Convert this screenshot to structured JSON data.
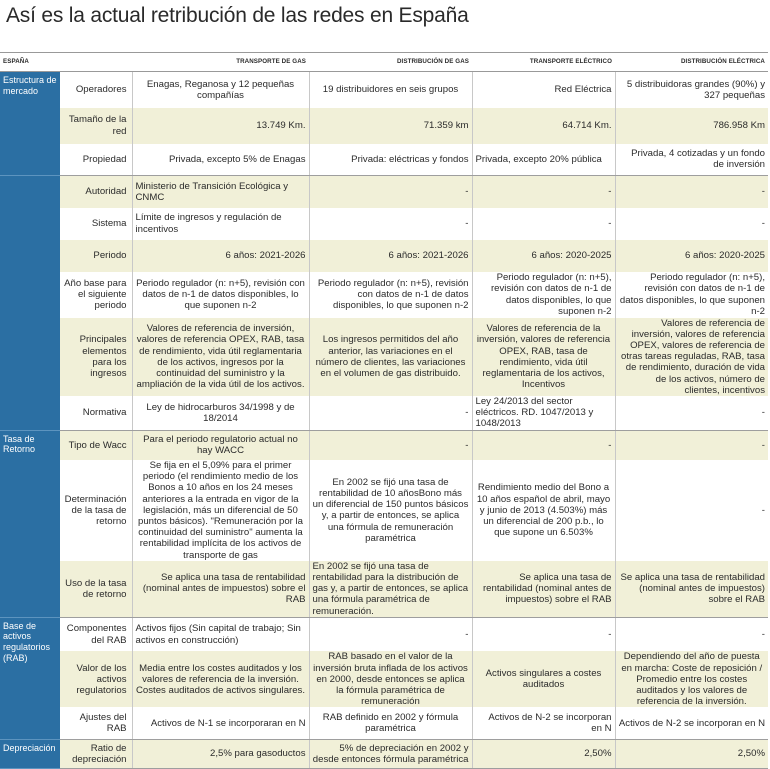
{
  "title": "Así es la actual retribución de las redes en España",
  "headers": [
    "España",
    "",
    "Transporte de gas",
    "Distribución de gas",
    "Transporte eléctrico",
    "Distribución eléctrica"
  ],
  "groups": [
    {
      "name": "Estructura de mercado",
      "rows": [
        {
          "label": "Operadores",
          "values": [
            "Enagas, Reganosa y 12 pequeñas compañías",
            "19 distribuidores en seis grupos",
            "Red Eléctrica",
            "5 distribuidoras grandes (90%) y 327 pequeñas"
          ]
        },
        {
          "label": "Tamaño de la red",
          "values": [
            "13.749 Km.",
            "71.359 km",
            "64.714 Km.",
            "786.958 Km"
          ]
        },
        {
          "label": "Propiedad",
          "values": [
            "Privada, excepto 5% de Enagas",
            "Privada: eléctricas y fondos",
            "Privada, excepto 20% pública",
            "Privada, 4 cotizadas y un fondo de inversión"
          ]
        }
      ]
    },
    {
      "name": "",
      "rows": [
        {
          "label": "Autoridad",
          "values": [
            "Ministerio de Transición Ecológica y CNMC",
            "-",
            "-",
            "-"
          ]
        },
        {
          "label": "Sistema",
          "values": [
            "Límite de ingresos y regulación de incentivos",
            "-",
            "-",
            "-"
          ]
        },
        {
          "label": "Periodo",
          "values": [
            "6 años: 2021-2026",
            "6 años: 2021-2026",
            "6 años: 2020-2025",
            "6 años: 2020-2025"
          ]
        },
        {
          "label": "Año base para el siguiente periodo",
          "values": [
            "Periodo regulador (n: n+5), revisión con datos de n-1 de datos disponibles, lo que suponen n-2",
            "Periodo regulador (n: n+5), revisión con datos de n-1 de datos disponibles, lo que suponen n-2",
            "Periodo regulador (n: n+5), revisión con datos de n-1 de datos disponibles, lo que suponen n-2",
            "Periodo regulador (n: n+5), revisión con datos de n-1 de datos disponibles, lo que suponen n-2"
          ]
        },
        {
          "label": "Principales elementos para los ingresos",
          "values": [
            "Valores de referencia de inversión, valores de referencia OPEX, RAB, tasa de rendimiento, vida útil reglamentaria de los activos, ingresos por la continuidad del suministro y la ampliación de la vida útil de los activos.",
            "Los ingresos permitidos del año anterior, las variaciones en el número de clientes, las variaciones en el volumen de gas distribuido.",
            "Valores de referencia de la inversión, valores de referencia OPEX, RAB, tasa de rendimiento, vida útil reglamentaria de los activos, Incentivos",
            "Valores de referencia de inversión, valores de referencia OPEX, valores de referencia de otras tareas reguladas, RAB, tasa de rendimiento, duración de vida de los activos, número de clientes, incentivos"
          ]
        },
        {
          "label": "Normativa",
          "values": [
            "Ley de hidrocarburos 34/1998 y de 18/2014",
            "-",
            "Ley 24/2013 del sector eléctricos. RD. 1047/2013 y 1048/2013",
            "-"
          ]
        }
      ]
    },
    {
      "name": "Tasa de Retorno",
      "rows": [
        {
          "label": "Tipo de Wacc",
          "values": [
            "Para el periodo regulatorio actual no hay WACC",
            "-",
            "-",
            "-"
          ]
        },
        {
          "label": "Determinación de la tasa de retorno",
          "values": [
            "Se fija en el 5,09% para el primer periodo (el rendimiento medio de los Bonos a 10 años en los 24 meses anteriores a la entrada en vigor de la legislación, más un diferencial de 50 puntos básicos). \"Remuneración por la continuidad del suministro\" aumenta la rentabilidad implícita de los activos de transporte de gas",
            "En 2002 se fijó una tasa de rentabilidad de 10 añosBono más un diferencial de 150 puntos básicos y, a partir de entonces, se aplica una fórmula de remuneración paramétrica",
            "Rendimiento medio del Bono a 10 años español de abril, mayo y junio de 2013 (4.503%) más un diferencial de 200 p.b., lo que supone un 6.503%",
            "-"
          ]
        },
        {
          "label": "Uso de la tasa de retorno",
          "values": [
            "Se aplica una tasa de rentabilidad (nominal antes de impuestos) sobre el RAB",
            "En 2002 se fijó una tasa de rentabilidad para la distribución de gas y, a partir de entonces, se aplica una fórmula paramétrica de remuneración.",
            "Se aplica una tasa de rentabilidad (nominal antes de impuestos) sobre el RAB",
            "Se aplica una tasa de rentabilidad (nominal antes de impuestos) sobre el RAB"
          ]
        }
      ]
    },
    {
      "name": "Base de activos regulatorios (RAB)",
      "rows": [
        {
          "label": "Componentes del RAB",
          "values": [
            "Activos fijos (Sin capital de trabajo; Sin activos en construcción)",
            "-",
            "-",
            "-"
          ]
        },
        {
          "label": "Valor de los activos regulatorios",
          "values": [
            "Media entre los costes auditados y los valores de referencia de la inversión. Costes auditados de activos singulares.",
            "RAB basado en el valor de la inversión bruta inflada de los activos en 2000, desde entonces se aplica la fórmula paramétrica de remuneración",
            "Activos singulares a costes auditados",
            "Dependiendo del año de puesta en marcha: Coste de reposición / Promedio entre los costes auditados y los valores de referencia de la inversión."
          ]
        },
        {
          "label": "Ajustes del RAB",
          "values": [
            "Activos de N-1 se incorporaran en N",
            "RAB definido en 2002 y fórmula paramétrica",
            "Activos de N-2 se incorporan en N",
            "Activos de N-2 se incorporan en N"
          ]
        }
      ]
    },
    {
      "name": "Depreciación",
      "rows": [
        {
          "label": "Ratio de depreciación",
          "values": [
            "2,5% para gasoductos",
            "5% de depreciación en 2002 y desde entonces fórmula paramétrica",
            "2,50%",
            "2,50%"
          ]
        }
      ]
    }
  ]
}
